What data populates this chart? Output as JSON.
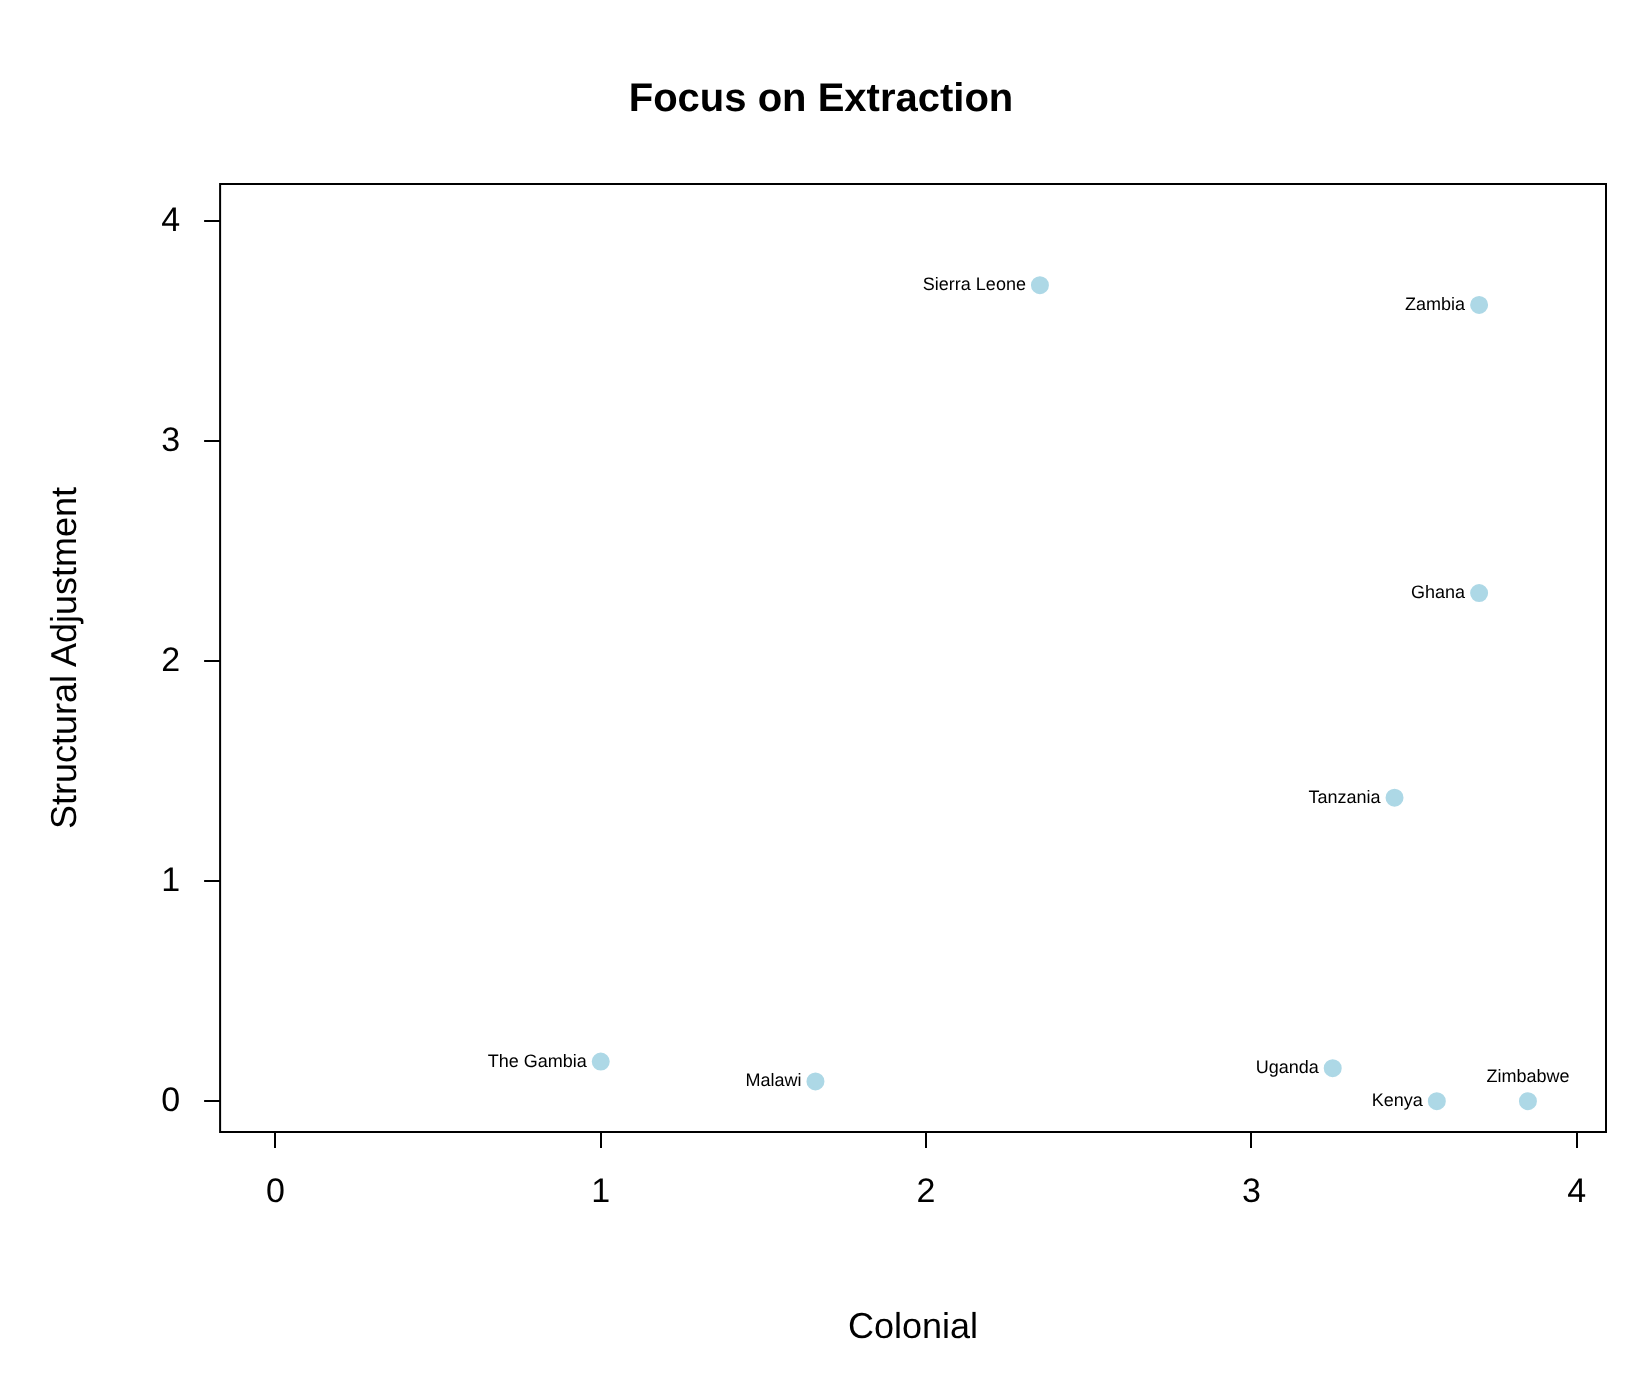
{
  "chart_data": {
    "type": "scatter",
    "title": "Focus on Extraction",
    "xlabel": "Colonial",
    "ylabel": "Structural Adjustment",
    "x": [
      2.35,
      3.7,
      3.7,
      3.44,
      1.0,
      1.66,
      3.25,
      3.57,
      3.85
    ],
    "series": [
      {
        "color": "#add8e6",
        "values": [
          3.71,
          3.62,
          2.31,
          1.38,
          0.18,
          0.09,
          0.15,
          0.0,
          0.0
        ]
      }
    ],
    "annotations": [
      {
        "text": "Sierra Leone",
        "x": 2.35,
        "y": 3.71
      },
      {
        "text": "Zambia",
        "x": 3.7,
        "y": 3.62
      },
      {
        "text": "Ghana",
        "x": 3.7,
        "y": 2.31
      },
      {
        "text": "Tanzania",
        "x": 3.44,
        "y": 1.38
      },
      {
        "text": "The Gambia",
        "x": 1.0,
        "y": 0.18
      },
      {
        "text": "Malawi",
        "x": 1.66,
        "y": 0.09
      },
      {
        "text": "Uganda",
        "x": 3.25,
        "y": 0.15
      },
      {
        "text": "Kenya",
        "x": 3.57,
        "y": 0.0
      },
      {
        "text": "Zimbabwe",
        "x": 3.85,
        "y": 0.0
      }
    ],
    "xlim": [
      -0.17,
      4.09
    ],
    "xticks": [
      0,
      1,
      2,
      3,
      4
    ],
    "ylim": [
      -0.14,
      4.17
    ],
    "yticks": [
      0,
      1,
      2,
      3,
      4
    ],
    "grid": false,
    "legend": false,
    "marker": "circle"
  }
}
